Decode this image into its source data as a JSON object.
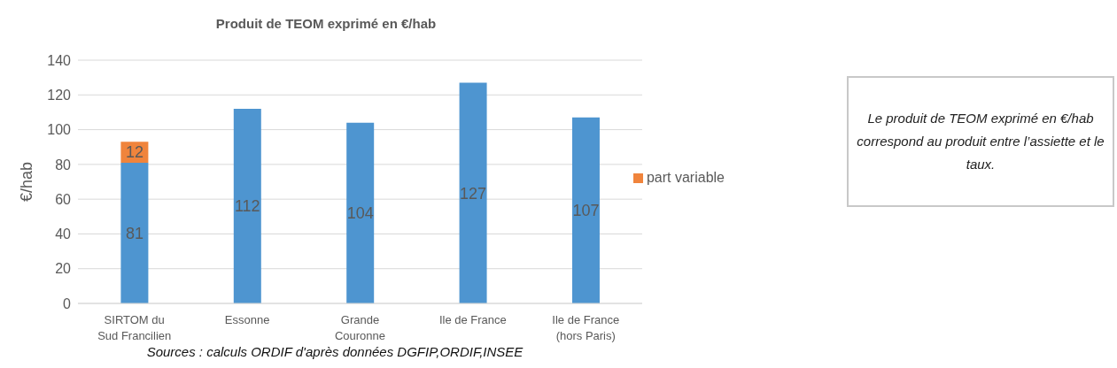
{
  "chart_data": {
    "type": "bar",
    "title": "Produit de TEOM exprimé en €/hab",
    "ylabel": "€/hab",
    "categories": [
      "SIRTOM du Sud Francilien",
      "Essonne",
      "Grande Couronne",
      "Ile de France",
      "Ile de France (hors Paris)"
    ],
    "series": [
      {
        "color": "#4e95d0",
        "values": [
          81,
          112,
          104,
          127,
          107
        ]
      },
      {
        "name": "part variable",
        "color": "#f0843c",
        "values": [
          12,
          null,
          null,
          null,
          null
        ]
      }
    ],
    "stacked": true,
    "ylim": [
      0,
      140
    ],
    "yticks": [
      0,
      20,
      40,
      60,
      80,
      100,
      120,
      140
    ],
    "grid": "y",
    "legend": "right",
    "data_labels": true,
    "annotations": [
      "Le produit de TEOM exprimé en €/hab correspond au produit entre l’assiette et le taux.",
      "Sources : calculs ORDIF d'après données DGFIP,ORDIF,INSEE"
    ]
  }
}
